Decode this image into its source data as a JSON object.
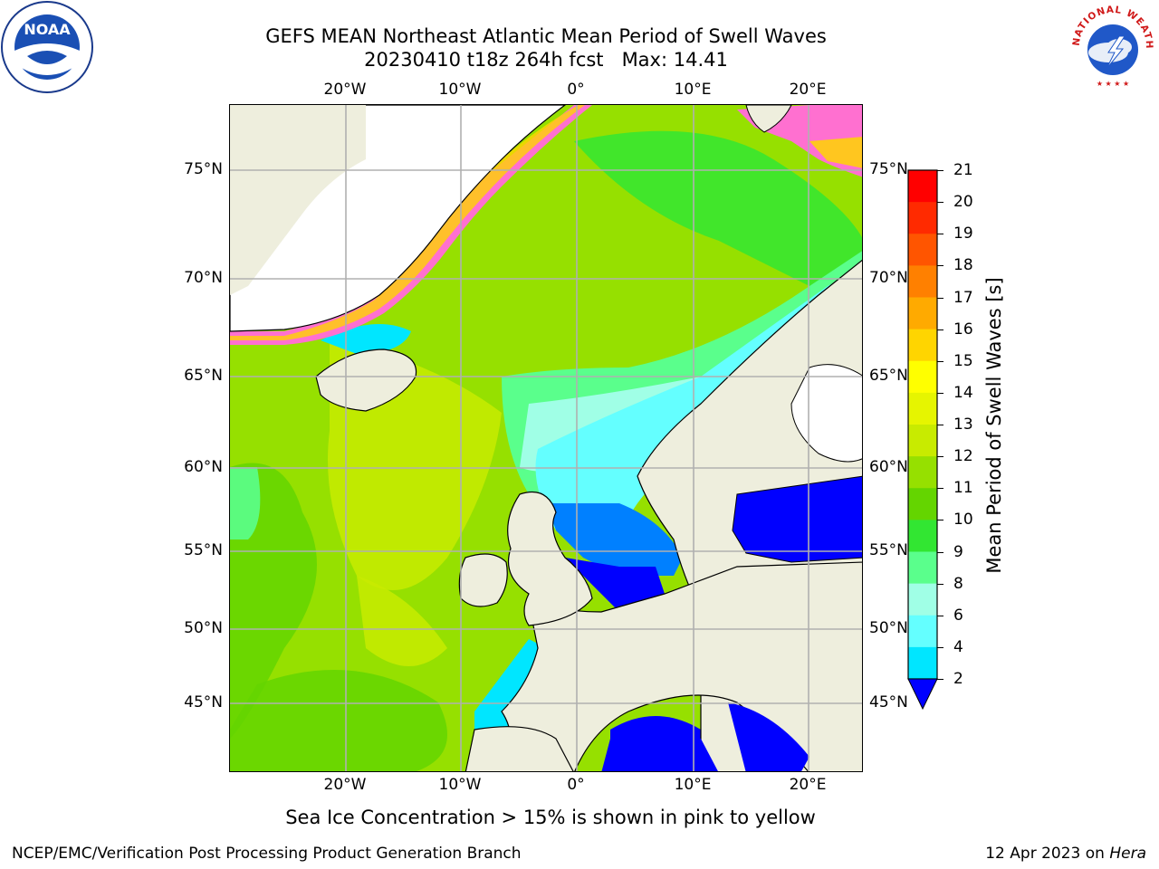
{
  "title": {
    "line1": "GEFS MEAN Northeast Atlantic Mean Period of Swell Waves",
    "line2": "20230410 t18z 264h fcst   Max: 14.41"
  },
  "axes": {
    "lon_labels": [
      "20°W",
      "10°W",
      "0°",
      "10°E",
      "20°E"
    ],
    "lat_labels": [
      "75°N",
      "70°N",
      "65°N",
      "60°N",
      "55°N",
      "50°N",
      "45°N"
    ]
  },
  "colorbar": {
    "title": "Mean Period of Swell Waves [s]",
    "ticks": [
      "21",
      "20",
      "19",
      "18",
      "17",
      "16",
      "15",
      "14",
      "13",
      "12",
      "11",
      "10",
      "9",
      "8",
      "6",
      "4",
      "2"
    ],
    "colors": [
      "#ff0000",
      "#ff2a00",
      "#ff5500",
      "#ff8000",
      "#ffaa00",
      "#ffd500",
      "#ffff00",
      "#e6f500",
      "#c8eb00",
      "#96e000",
      "#64d500",
      "#32e632",
      "#5aff8c",
      "#a0ffe6",
      "#64ffff",
      "#00e6ff",
      "#0080ff"
    ],
    "extend_color": "#0000ff"
  },
  "note": "Sea Ice Concentration > 15% is shown in pink to yellow",
  "footer": {
    "left": "NCEP/EMC/Verification Post Processing Product Generation Branch",
    "right_prefix": "12 Apr 2023 on ",
    "right_host": "Hera"
  },
  "logos": {
    "noaa_text": "NOAA",
    "nws_text": "NATIONAL WEATHER SERVICE"
  }
}
